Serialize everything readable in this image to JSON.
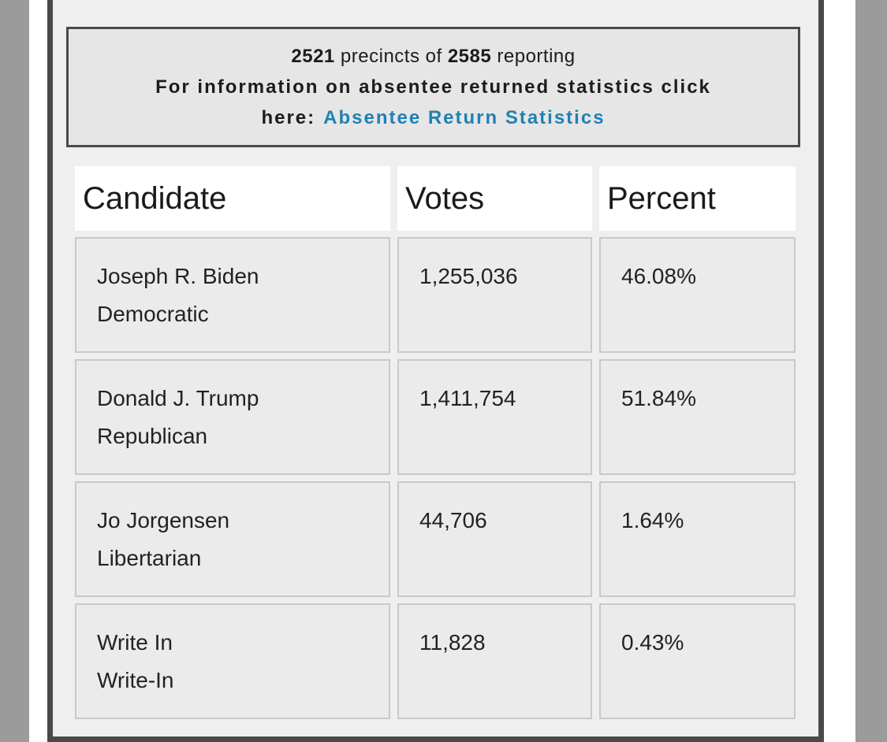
{
  "colors": {
    "link_blue": "#2081b4",
    "frame_dark": "#4a4a4a",
    "outer_gutter": "#9b9b9b",
    "page_background": "#efefef"
  },
  "notice": {
    "precincts_reporting": "2521",
    "precincts_mid": " precincts of ",
    "precincts_total": "2585",
    "precincts_suffix": " reporting",
    "info_line1": "For information on absentee returned statistics click",
    "info_line2_prefix": "here:",
    "link_label": "Absentee Return Statistics"
  },
  "results_table": {
    "columns": [
      "Candidate",
      "Votes",
      "Percent"
    ],
    "rows": [
      {
        "candidate": "Joseph R. Biden",
        "party": "Democratic",
        "votes": "1,255,036",
        "percent": "46.08%"
      },
      {
        "candidate": "Donald J. Trump",
        "party": "Republican",
        "votes": "1,411,754",
        "percent": "51.84%"
      },
      {
        "candidate": "Jo Jorgensen",
        "party": "Libertarian",
        "votes": "44,706",
        "percent": "1.64%"
      },
      {
        "candidate": "Write In",
        "party": "Write-In",
        "votes": "11,828",
        "percent": "0.43%"
      }
    ]
  }
}
